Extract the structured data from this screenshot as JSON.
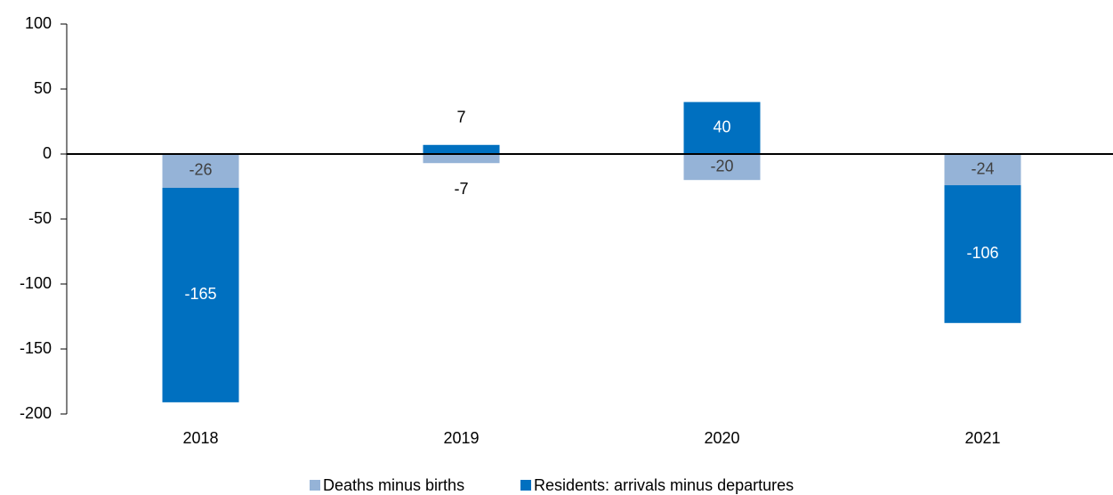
{
  "chart_data": {
    "type": "stacked_bar",
    "categories": [
      "2018",
      "2019",
      "2020",
      "2021"
    ],
    "series": [
      {
        "name": "Deaths minus births",
        "color": "#95b3d7",
        "values": [
          -26,
          -7,
          -20,
          -24
        ]
      },
      {
        "name": "Residents: arrivals minus departures",
        "color": "#0070c0",
        "values": [
          -165,
          7,
          40,
          -106
        ]
      }
    ],
    "ylim": [
      -200,
      100
    ],
    "yticks": [
      -200,
      -150,
      -100,
      -50,
      0,
      50,
      100
    ],
    "legend": "bottom"
  }
}
